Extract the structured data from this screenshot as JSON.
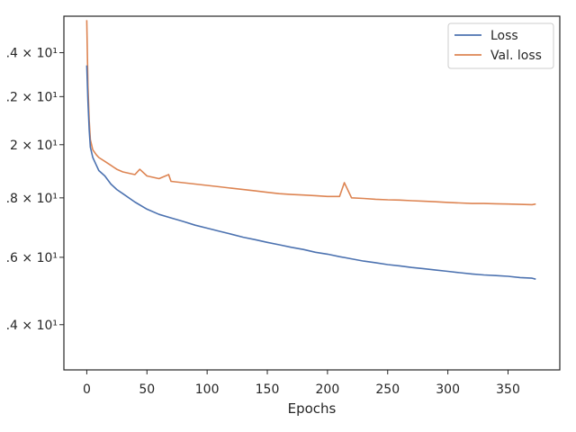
{
  "chart_data": {
    "type": "line",
    "title": "",
    "xlabel": "Epochs",
    "ylabel": "",
    "yscale": "log",
    "grid": false,
    "legend_position": "top-right",
    "xlim": [
      -19,
      393
    ],
    "ylim": [
      12.8,
      25.8
    ],
    "x_ticks": [
      0,
      50,
      100,
      150,
      200,
      250,
      300,
      350
    ],
    "x_tick_labels": [
      "0",
      "50",
      "100",
      "150",
      "200",
      "250",
      "300",
      "350"
    ],
    "y_ticks": [
      14,
      16,
      18,
      20,
      22,
      24
    ],
    "y_tick_labels": [
      ".4 × 10¹",
      ".6 × 10¹",
      ".8 × 10¹",
      "2 × 10¹",
      ".2 × 10¹",
      ".4 × 10¹"
    ],
    "series": [
      {
        "name": "Loss",
        "color": "#4c72b0",
        "x": [
          0,
          1,
          2,
          3,
          5,
          8,
          10,
          15,
          20,
          25,
          30,
          40,
          50,
          60,
          70,
          80,
          90,
          100,
          110,
          120,
          130,
          140,
          150,
          160,
          170,
          180,
          190,
          200,
          210,
          220,
          230,
          240,
          250,
          260,
          270,
          280,
          290,
          300,
          310,
          320,
          330,
          340,
          350,
          360,
          370,
          373
        ],
        "values": [
          23.4,
          21.8,
          20.6,
          19.9,
          19.5,
          19.2,
          19.0,
          18.8,
          18.5,
          18.3,
          18.15,
          17.85,
          17.6,
          17.42,
          17.3,
          17.18,
          17.05,
          16.95,
          16.85,
          16.75,
          16.65,
          16.57,
          16.48,
          16.4,
          16.32,
          16.25,
          16.16,
          16.1,
          16.02,
          15.95,
          15.88,
          15.83,
          15.77,
          15.73,
          15.68,
          15.64,
          15.6,
          15.56,
          15.52,
          15.48,
          15.45,
          15.43,
          15.41,
          15.37,
          15.35,
          15.32
        ]
      },
      {
        "name": "Val. loss",
        "color": "#dd8452",
        "x": [
          0,
          1,
          2,
          3,
          5,
          8,
          10,
          15,
          20,
          25,
          30,
          40,
          44,
          50,
          60,
          68,
          70,
          80,
          90,
          100,
          110,
          120,
          130,
          140,
          150,
          160,
          170,
          180,
          190,
          200,
          210,
          214,
          220,
          230,
          240,
          250,
          260,
          270,
          280,
          290,
          300,
          310,
          320,
          330,
          340,
          350,
          360,
          370,
          373
        ],
        "values": [
          25.6,
          22.5,
          21.0,
          20.2,
          19.8,
          19.6,
          19.5,
          19.35,
          19.2,
          19.05,
          18.95,
          18.85,
          19.05,
          18.8,
          18.7,
          18.85,
          18.6,
          18.55,
          18.5,
          18.45,
          18.4,
          18.35,
          18.3,
          18.25,
          18.2,
          18.15,
          18.12,
          18.1,
          18.08,
          18.05,
          18.05,
          18.55,
          18.0,
          17.98,
          17.95,
          17.93,
          17.92,
          17.9,
          17.88,
          17.86,
          17.84,
          17.82,
          17.8,
          17.8,
          17.79,
          17.78,
          17.77,
          17.76,
          17.78
        ]
      }
    ]
  }
}
